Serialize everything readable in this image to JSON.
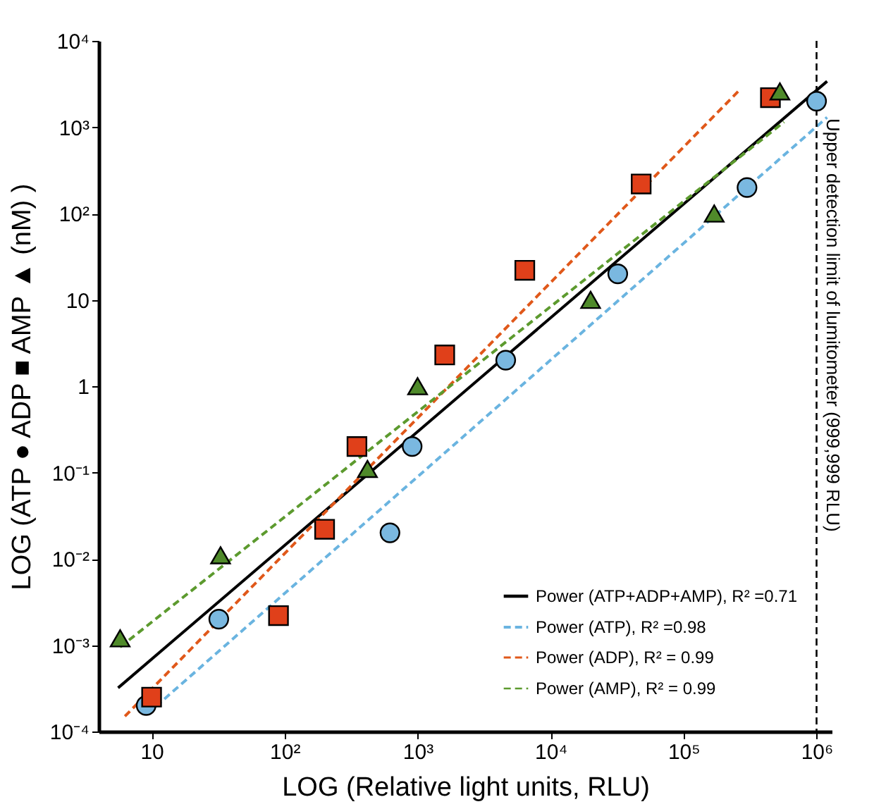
{
  "chart_data": {
    "type": "scatter",
    "xlabel": "LOG (Relative light units, RLU)",
    "ylabel": "LOG (ATP ●   ADP ■   AMP ▲   (nM) )",
    "log": "xy",
    "xlim": [
      4,
      1300000
    ],
    "ylim": [
      0.0001,
      10000
    ],
    "xticks": [
      10,
      {
        "value": 100,
        "label": "10²"
      },
      {
        "value": 1000,
        "label": "10³"
      },
      {
        "value": 10000,
        "label": "10⁴"
      },
      {
        "value": 100000,
        "label": "10⁵"
      },
      {
        "value": 1000000,
        "label": "10⁶"
      }
    ],
    "yticks": [
      {
        "value": 0.0001,
        "label": "10⁻⁴"
      },
      {
        "value": 0.001,
        "label": "10⁻³"
      },
      {
        "value": 0.01,
        "label": "10⁻²"
      },
      {
        "value": 0.1,
        "label": "10⁻¹"
      },
      1,
      10,
      {
        "value": 100,
        "label": "10²"
      },
      {
        "value": 1000,
        "label": "10³"
      },
      {
        "value": 10000,
        "label": "10⁴"
      }
    ],
    "grid": false,
    "legend": "bottom right",
    "series": [
      {
        "type": "line",
        "name": "Power (ATP+ADP+AMP), R² =0.71",
        "color": "#000000",
        "line_style": "solid",
        "x": [
          5.6,
          1200000
        ],
        "values": [
          0.00032,
          3400
        ]
      },
      {
        "type": "line",
        "name": "Power (ATP), R² =0.98",
        "color": "#6ab4e0",
        "line_style": "dashed",
        "x": [
          9.3,
          1200000
        ],
        "values": [
          0.00016,
          1300
        ]
      },
      {
        "type": "line",
        "name": "Power (ADP), R² = 0.99",
        "color": "#e0581a",
        "line_style": "dashed",
        "x": [
          6.3,
          270000
        ],
        "values": [
          0.00015,
          2800
        ]
      },
      {
        "type": "line",
        "name": "Power (AMP), R² = 0.99",
        "color": "#5c9a2e",
        "line_style": "dashed",
        "x": [
          5.8,
          570000
        ],
        "values": [
          0.00095,
          1150
        ]
      },
      {
        "marker": "circle",
        "color": "#7ab8e0",
        "x": [
          9.1,
          32,
          620,
          910,
          4600,
          32000,
          300000,
          1000000
        ],
        "values": [
          0.0002,
          0.002,
          0.02,
          0.2,
          2,
          20,
          200,
          2000
        ]
      },
      {
        "marker": "square",
        "color": "#e0401a",
        "x": [
          10,
          90,
          200,
          350,
          1600,
          6400,
          48000,
          450000
        ],
        "values": [
          0.00025,
          0.0022,
          0.022,
          0.2,
          2.3,
          22,
          220,
          2200
        ]
      },
      {
        "marker": "triangle",
        "color": "#4f8a2a",
        "x": [
          5.8,
          33,
          420,
          1000,
          20000,
          170000,
          530000
        ],
        "values": [
          0.0012,
          0.011,
          0.11,
          1,
          10,
          100,
          2600
        ]
      }
    ],
    "ref_lines": [
      {
        "axis": "x",
        "value": 1000000,
        "label": "Upper detection limit of lumitometer (999,999 RLU)",
        "color": "#000000",
        "line_style": "dashed"
      }
    ]
  }
}
